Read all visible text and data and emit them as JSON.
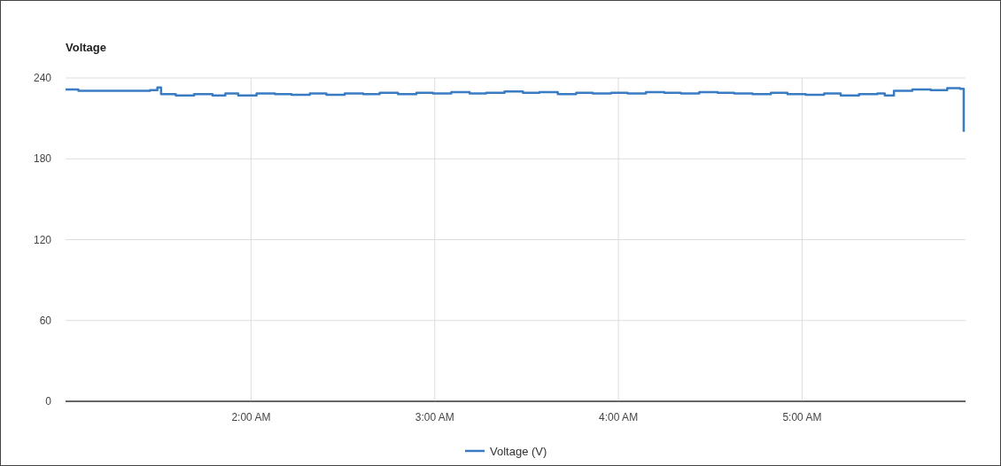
{
  "chart_data": {
    "type": "step",
    "ylabel": "Voltage",
    "xlim": [
      0.99,
      5.89
    ],
    "xticks": [
      {
        "value": 2,
        "label": "2:00 AM"
      },
      {
        "value": 3,
        "label": "3:00 AM"
      },
      {
        "value": 4,
        "label": "4:00 AM"
      },
      {
        "value": 5,
        "label": "5:00 AM"
      }
    ],
    "ylim": [
      0,
      240
    ],
    "yticks": [
      0,
      60,
      120,
      180,
      240
    ],
    "grid": true,
    "legend": "bottom",
    "marker": "none",
    "line_style": "solid",
    "x": [
      0.99,
      1.06,
      1.26,
      1.45,
      1.49,
      1.51,
      1.59,
      1.69,
      1.79,
      1.86,
      1.93,
      2.03,
      2.13,
      2.22,
      2.32,
      2.41,
      2.51,
      2.61,
      2.7,
      2.8,
      2.9,
      2.99,
      3.09,
      3.19,
      3.28,
      3.38,
      3.48,
      3.57,
      3.67,
      3.77,
      3.86,
      3.96,
      4.05,
      4.15,
      4.25,
      4.34,
      4.44,
      4.54,
      4.63,
      4.73,
      4.83,
      4.92,
      5.02,
      5.12,
      5.21,
      5.31,
      5.41,
      5.45,
      5.5,
      5.6,
      5.7,
      5.79,
      5.86,
      5.88
    ],
    "series": [
      {
        "name": "Voltage (V)",
        "color": "#3a7cc4",
        "values": [
          231.5,
          230.5,
          230.5,
          231,
          233,
          228,
          227,
          228,
          227,
          228.5,
          227,
          228.5,
          228,
          227.5,
          228.5,
          227.5,
          228.5,
          228,
          229,
          228,
          229,
          228.5,
          229.5,
          228.5,
          229,
          230,
          229,
          229.5,
          228,
          229,
          228.5,
          229,
          228.5,
          229.5,
          229,
          228.5,
          229.5,
          229,
          228.5,
          228,
          229,
          228,
          227.5,
          228.5,
          227,
          228,
          228.5,
          227,
          230.5,
          231.5,
          231,
          232.5,
          232,
          200
        ]
      }
    ]
  }
}
